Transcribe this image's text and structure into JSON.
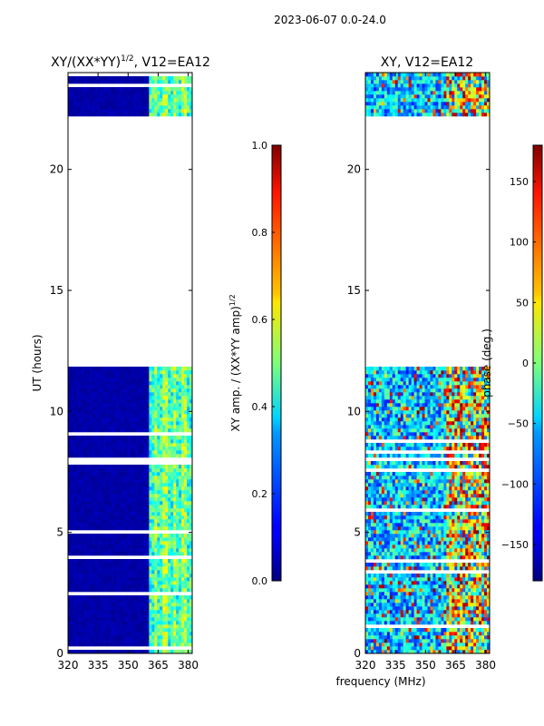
{
  "figure": {
    "title": "2023-06-07 0.0-24.0"
  },
  "chart_data": [
    {
      "type": "heatmap",
      "title": "XY/(XX*YY)",
      "title_exponent": "1/2",
      "title_suffix": ", V12=EA12",
      "xlabel": "",
      "ylabel": "UT (hours)",
      "xlim": [
        320,
        382
      ],
      "ylim": [
        0,
        24
      ],
      "xticks": [
        320,
        335,
        350,
        365,
        380
      ],
      "yticks": [
        0,
        5,
        10,
        15,
        20
      ],
      "data_ranges_hours": [
        [
          0,
          11.8
        ],
        [
          22.2,
          24
        ]
      ],
      "colorbar": {
        "label_prefix": "XY amp. / (XX*YY amp)",
        "label_exponent": "1/2",
        "range": [
          0.0,
          1.0
        ],
        "ticks": [
          "0.0",
          "0.2",
          "0.4",
          "0.6",
          "0.8",
          "1.0"
        ],
        "tick_values": [
          0.0,
          0.2,
          0.4,
          0.6,
          0.8,
          1.0
        ]
      }
    },
    {
      "type": "heatmap",
      "title": "XY, V12=EA12",
      "xlabel": "frequency (MHz)",
      "ylabel": "",
      "xlim": [
        320,
        382
      ],
      "ylim": [
        0,
        24
      ],
      "xticks": [
        320,
        335,
        350,
        365,
        380
      ],
      "yticks": [
        0,
        5,
        10,
        15,
        20
      ],
      "data_ranges_hours": [
        [
          0,
          11.8
        ],
        [
          22.2,
          24
        ]
      ],
      "colorbar": {
        "label": "phase (deg.)",
        "range": [
          -180,
          180
        ],
        "ticks": [
          "150",
          "100",
          "50",
          "0",
          "−50",
          "−100",
          "−150"
        ],
        "tick_values": [
          150,
          100,
          50,
          0,
          -50,
          -100,
          -150
        ]
      }
    }
  ]
}
